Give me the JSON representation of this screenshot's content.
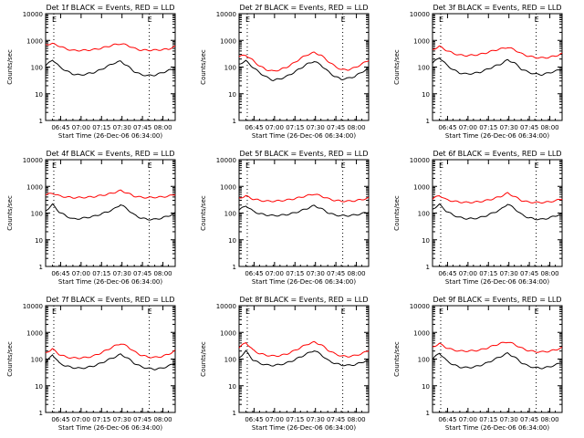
{
  "colors": {
    "events": "#000000",
    "lld": "#ff0000",
    "background": "#ffffff"
  },
  "chart_data": {
    "type": "line",
    "layout": "3x3 grid of subplots",
    "common": {
      "xlabel": "Start Time (26-Dec-06 06:34:00)",
      "ylabel": "Counts/sec",
      "yscale": "log",
      "ylim": [
        1,
        10000
      ],
      "xlim": [
        0,
        95
      ],
      "xlim_units": "minutes after 06:34:00",
      "yticks": [
        1,
        10,
        100,
        1000,
        10000
      ],
      "ytick_labels": [
        "1",
        "10",
        "100",
        "1000",
        "10000"
      ],
      "xticks": [
        11,
        26,
        41,
        56,
        71,
        86
      ],
      "xtick_labels": [
        "06:45",
        "07:00",
        "07:15",
        "07:30",
        "07:45",
        "08:00"
      ],
      "marker_times": [
        6,
        76
      ],
      "marker_labels": [
        "E",
        "E"
      ],
      "legend": "in title: BLACK = Events, RED = LLD",
      "series_names": [
        "Events",
        "LLD"
      ],
      "series_colors": [
        "#000000",
        "#ff0000"
      ],
      "x": [
        0,
        5,
        10,
        15,
        20,
        25,
        30,
        35,
        40,
        45,
        50,
        55,
        60,
        65,
        70,
        75,
        80,
        85,
        90,
        95
      ]
    },
    "panels": [
      {
        "title": "Det 1f BLACK = Events, RED = LLD",
        "series": [
          {
            "name": "Events",
            "color": "#000000",
            "values": [
              110,
              190,
              105,
              72,
              55,
              50,
              55,
              62,
              78,
              105,
              140,
              165,
              110,
              68,
              52,
              48,
              50,
              60,
              75,
              85
            ]
          },
          {
            "name": "LLD",
            "color": "#ff0000",
            "values": [
              700,
              750,
              620,
              480,
              420,
              420,
              430,
              450,
              500,
              580,
              680,
              750,
              660,
              500,
              430,
              430,
              430,
              450,
              470,
              600
            ]
          }
        ]
      },
      {
        "title": "Det 2f BLACK = Events, RED = LLD",
        "series": [
          {
            "name": "Events",
            "color": "#000000",
            "values": [
              130,
              170,
              100,
              62,
              42,
              32,
              36,
              45,
              62,
              90,
              130,
              165,
              120,
              70,
              45,
              35,
              38,
              45,
              65,
              90
            ]
          },
          {
            "name": "LLD",
            "color": "#ff0000",
            "values": [
              250,
              280,
              180,
              110,
              80,
              70,
              80,
              100,
              140,
              210,
              290,
              350,
              280,
              170,
              110,
              80,
              80,
              95,
              130,
              180
            ]
          }
        ]
      },
      {
        "title": "Det 3f BLACK = Events, RED = LLD",
        "series": [
          {
            "name": "Events",
            "color": "#000000",
            "values": [
              140,
              230,
              125,
              80,
              60,
              55,
              58,
              65,
              82,
              105,
              130,
              185,
              145,
              85,
              65,
              55,
              52,
              60,
              70,
              85
            ]
          },
          {
            "name": "LLD",
            "color": "#ff0000",
            "values": [
              450,
              600,
              430,
              330,
              280,
              270,
              280,
              300,
              350,
              420,
              480,
              550,
              450,
              320,
              260,
              230,
              220,
              230,
              260,
              320
            ]
          }
        ]
      },
      {
        "title": "Det 4f BLACK = Events, RED = LLD",
        "series": [
          {
            "name": "Events",
            "color": "#000000",
            "values": [
              120,
              210,
              110,
              78,
              60,
              62,
              68,
              75,
              90,
              110,
              140,
              210,
              140,
              85,
              65,
              58,
              58,
              65,
              78,
              100
            ]
          },
          {
            "name": "LLD",
            "color": "#ff0000",
            "values": [
              480,
              560,
              440,
              400,
              380,
              380,
              390,
              410,
              450,
              500,
              580,
              700,
              560,
              430,
              390,
              380,
              390,
              400,
              430,
              500
            ]
          }
        ]
      },
      {
        "title": "Det 5f BLACK = Events, RED = LLD",
        "series": [
          {
            "name": "Events",
            "color": "#000000",
            "values": [
              130,
              190,
              120,
              95,
              85,
              80,
              82,
              88,
              100,
              120,
              150,
              190,
              150,
              105,
              85,
              80,
              80,
              85,
              95,
              110
            ]
          },
          {
            "name": "LLD",
            "color": "#ff0000",
            "values": [
              360,
              440,
              340,
              300,
              280,
              280,
              290,
              310,
              340,
              390,
              450,
              520,
              440,
              350,
              300,
              280,
              280,
              290,
              320,
              370
            ]
          }
        ]
      },
      {
        "title": "Det 6f BLACK = Events, RED = LLD",
        "series": [
          {
            "name": "Events",
            "color": "#000000",
            "values": [
              140,
              210,
              120,
              85,
              68,
              62,
              62,
              68,
              82,
              105,
              135,
              220,
              150,
              90,
              68,
              60,
              58,
              65,
              78,
              95
            ]
          },
          {
            "name": "LLD",
            "color": "#ff0000",
            "values": [
              340,
              460,
              320,
              280,
              260,
              250,
              255,
              270,
              300,
              350,
              420,
              560,
              420,
              300,
              260,
              250,
              250,
              260,
              290,
              340
            ]
          }
        ]
      },
      {
        "title": "Det 7f BLACK = Events, RED = LLD",
        "series": [
          {
            "name": "Events",
            "color": "#000000",
            "values": [
              70,
              150,
              70,
              55,
              48,
              45,
              48,
              55,
              68,
              90,
              115,
              150,
              110,
              70,
              52,
              45,
              42,
              45,
              55,
              70
            ]
          },
          {
            "name": "LLD",
            "color": "#ff0000",
            "values": [
              170,
              240,
              150,
              120,
              110,
              110,
              115,
              130,
              165,
              220,
              300,
              380,
              300,
              190,
              140,
              120,
              115,
              125,
              150,
              210
            ]
          }
        ]
      },
      {
        "title": "Det 8f BLACK = Events, RED = LLD",
        "series": [
          {
            "name": "Events",
            "color": "#000000",
            "values": [
              110,
              200,
              95,
              70,
              60,
              58,
              62,
              72,
              90,
              120,
              160,
              210,
              150,
              90,
              70,
              60,
              58,
              62,
              75,
              95
            ]
          },
          {
            "name": "LLD",
            "color": "#ff0000",
            "values": [
              270,
              420,
              220,
              160,
              140,
              130,
              135,
              155,
              200,
              270,
              360,
              430,
              350,
              220,
              160,
              130,
              125,
              135,
              160,
              210
            ]
          }
        ]
      },
      {
        "title": "Det 9f BLACK = Events, RED = LLD",
        "series": [
          {
            "name": "Events",
            "color": "#000000",
            "values": [
              100,
              170,
              90,
              62,
              50,
              48,
              50,
              58,
              72,
              95,
              125,
              165,
              120,
              75,
              55,
              48,
              46,
              50,
              60,
              75
            ]
          },
          {
            "name": "LLD",
            "color": "#ff0000",
            "values": [
              280,
              380,
              270,
              220,
              200,
              200,
              205,
              220,
              260,
              320,
              390,
              440,
              360,
              260,
              210,
              190,
              185,
              195,
              220,
              270
            ]
          }
        ]
      }
    ]
  }
}
